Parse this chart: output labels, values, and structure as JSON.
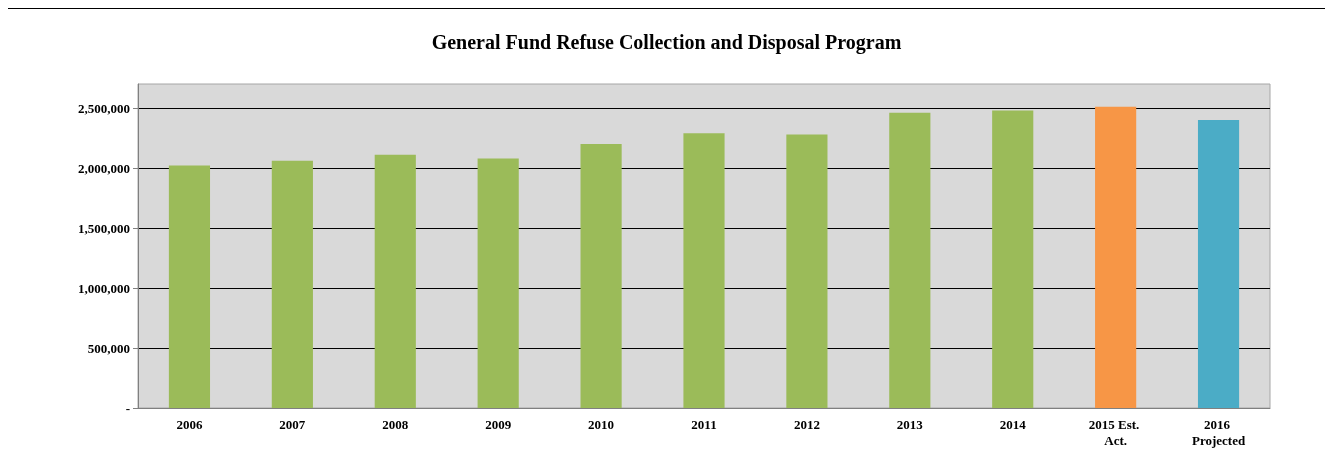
{
  "chart_data": {
    "type": "bar",
    "title": "General Fund Refuse Collection and Disposal Program",
    "categories": [
      "2006",
      "2007",
      "2008",
      "2009",
      "2010",
      "2011",
      "2012",
      "2013",
      "2014",
      "2015 Est. Act.",
      "2016 Projected"
    ],
    "values": [
      2020000,
      2060000,
      2110000,
      2080000,
      2200000,
      2290000,
      2280000,
      2460000,
      2480000,
      2510000,
      2400000
    ],
    "colors": [
      "#9bbb59",
      "#9bbb59",
      "#9bbb59",
      "#9bbb59",
      "#9bbb59",
      "#9bbb59",
      "#9bbb59",
      "#9bbb59",
      "#9bbb59",
      "#f79646",
      "#4bacc6"
    ],
    "ylim": [
      0,
      2700000
    ],
    "yticks": [
      {
        "value": 0,
        "label": "-"
      },
      {
        "value": 500000,
        "label": "500,000"
      },
      {
        "value": 1000000,
        "label": "1,000,000"
      },
      {
        "value": 1500000,
        "label": "1,500,000"
      },
      {
        "value": 2000000,
        "label": "2,000,000"
      },
      {
        "value": 2500000,
        "label": "2,500,000"
      }
    ],
    "grid": "y"
  }
}
